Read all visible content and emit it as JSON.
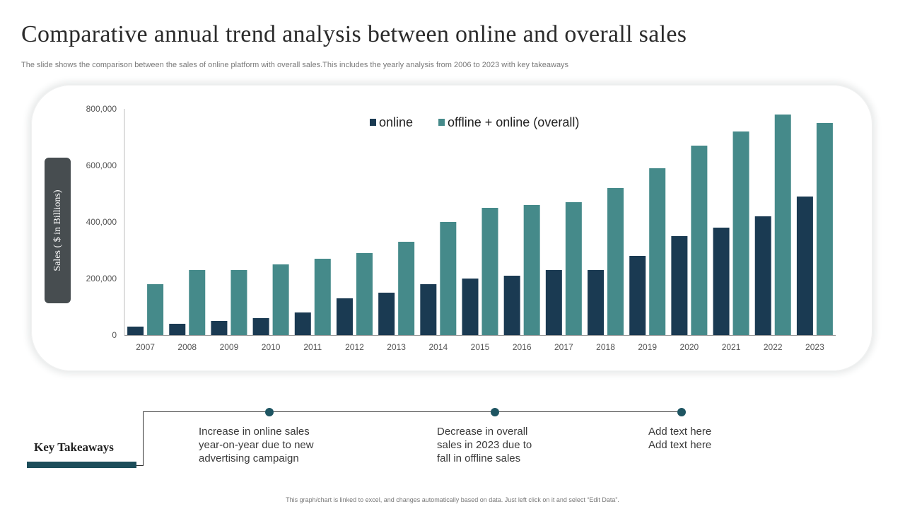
{
  "slide": {
    "title": "Comparative annual trend analysis between online and overall sales",
    "subtitle": "The slide shows the comparison between the sales of online platform with overall sales.This includes the yearly analysis from 2006 to 2023 with key takeaways",
    "footnote": "This graph/chart is linked to excel, and changes automatically based on data. Just left click on it and select “Edit Data”."
  },
  "chart_data": {
    "type": "bar",
    "categories": [
      "2007",
      "2008",
      "2009",
      "2010",
      "2011",
      "2012",
      "2013",
      "2014",
      "2015",
      "2016",
      "2017",
      "2018",
      "2019",
      "2020",
      "2021",
      "2022",
      "2023"
    ],
    "series": [
      {
        "name": "online",
        "color": "#1a3a52",
        "values": [
          30000,
          40000,
          50000,
          60000,
          80000,
          130000,
          150000,
          180000,
          200000,
          210000,
          230000,
          230000,
          280000,
          350000,
          380000,
          420000,
          490000
        ]
      },
      {
        "name": "offline + online (overall)",
        "color": "#458a8a",
        "values": [
          180000,
          230000,
          230000,
          250000,
          270000,
          290000,
          330000,
          400000,
          450000,
          460000,
          470000,
          520000,
          590000,
          670000,
          720000,
          780000,
          750000
        ]
      }
    ],
    "yticks": [
      "0",
      "200,000",
      "400,000",
      "600,000",
      "800,000"
    ],
    "ylabel": "Sales ( $ in Billions)",
    "ylim": [
      0,
      800000
    ],
    "legend_position": "top-center",
    "grid": false
  },
  "takeaways": {
    "label": "Key Takeaways",
    "items": [
      {
        "lines": [
          "Increase  in online sales",
          "year-on-year  due to new",
          "advertising campaign"
        ]
      },
      {
        "lines": [
          "Decrease in overall",
          "sales in 2023 due to",
          "fall in offline sales"
        ]
      },
      {
        "lines": [
          "Add text here",
          "Add text here"
        ]
      }
    ]
  }
}
